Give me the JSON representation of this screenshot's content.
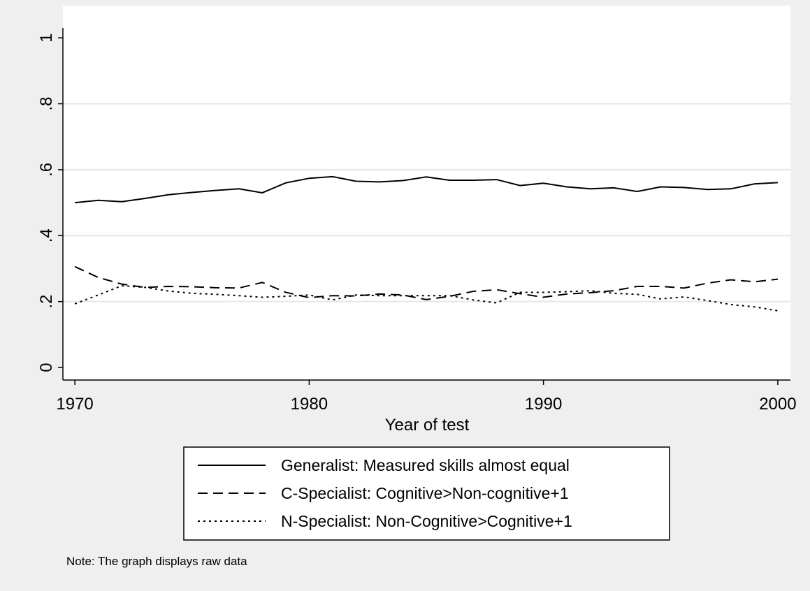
{
  "chart_data": {
    "type": "line",
    "x_label": "Year of test",
    "note": "Note: The graph displays raw data",
    "x": [
      1970,
      1971,
      1972,
      1973,
      1974,
      1975,
      1976,
      1977,
      1978,
      1979,
      1980,
      1981,
      1982,
      1983,
      1984,
      1985,
      1986,
      1987,
      1988,
      1989,
      1990,
      1991,
      1992,
      1993,
      1994,
      1995,
      1996,
      1997,
      1998,
      1999,
      2000
    ],
    "series": [
      {
        "name": "Generalist: Measured skills almost equal",
        "color": "#000000",
        "line_style": "solid",
        "values": [
          0.5,
          0.507,
          0.503,
          0.513,
          0.524,
          0.531,
          0.537,
          0.542,
          0.53,
          0.56,
          0.574,
          0.579,
          0.565,
          0.563,
          0.567,
          0.578,
          0.568,
          0.568,
          0.57,
          0.552,
          0.559,
          0.548,
          0.542,
          0.545,
          0.534,
          0.548,
          0.546,
          0.54,
          0.542,
          0.557,
          0.561
        ]
      },
      {
        "name": "C-Specialist: Cognitive>Non-cognitive+1",
        "color": "#000000",
        "line_style": "dashed",
        "values": [
          0.306,
          0.273,
          0.253,
          0.243,
          0.246,
          0.245,
          0.242,
          0.241,
          0.258,
          0.228,
          0.212,
          0.218,
          0.217,
          0.223,
          0.22,
          0.206,
          0.216,
          0.231,
          0.236,
          0.224,
          0.213,
          0.223,
          0.227,
          0.233,
          0.246,
          0.246,
          0.241,
          0.256,
          0.266,
          0.26,
          0.268
        ]
      },
      {
        "name": "N-Specialist: Non-Cognitive>Cognitive+1",
        "color": "#000000",
        "line_style": "dotted",
        "values": [
          0.193,
          0.22,
          0.248,
          0.243,
          0.232,
          0.225,
          0.222,
          0.218,
          0.213,
          0.216,
          0.22,
          0.205,
          0.22,
          0.218,
          0.218,
          0.218,
          0.218,
          0.205,
          0.196,
          0.228,
          0.228,
          0.23,
          0.233,
          0.225,
          0.222,
          0.208,
          0.214,
          0.203,
          0.191,
          0.184,
          0.172
        ]
      }
    ],
    "xlim": [
      1969.49,
      2000.54
    ],
    "xticks": [
      1970,
      1980,
      1990,
      2000
    ],
    "ylim": [
      -0.038,
      1.03
    ],
    "yticks": [
      0,
      {
        "value": 0.2,
        "label": ".2"
      },
      {
        "value": 0.4,
        "label": ".4"
      },
      {
        "value": 0.6,
        "label": ".6"
      },
      {
        "value": 0.8,
        "label": ".8"
      },
      1
    ],
    "grid": true,
    "legend": "bottom"
  }
}
